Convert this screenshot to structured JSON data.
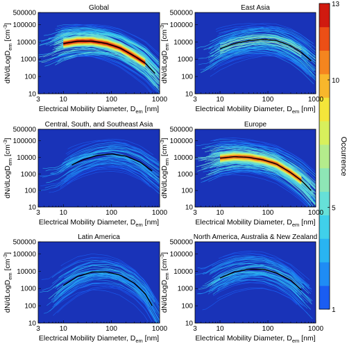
{
  "figure": {
    "colorbar": {
      "label": "Occurrence",
      "ticks": [
        1,
        5,
        10,
        13
      ],
      "range": [
        1,
        13
      ],
      "colors": [
        "#1a5df2",
        "#1f8cf5",
        "#29b4f2",
        "#40d0ea",
        "#66e0d8",
        "#8ee6b6",
        "#b4ec8c",
        "#d8f05c",
        "#f4e63a",
        "#f8b72c",
        "#f5851f",
        "#ec4f16",
        "#d01a0f"
      ]
    },
    "background_color": "#1933b8",
    "mean_line_color": "#000000"
  },
  "chart_data": [
    {
      "type": "heatmap",
      "title": "Global",
      "xlabel": "Electrical Mobility Diameter, D",
      "xlabel_sub": "em",
      "xlabel_unit": " [nm]",
      "ylabel": "dN/dLogD",
      "ylabel_sub": "em",
      "ylabel_unit": " [cm",
      "ylabel_sup": "-3",
      "ylabel_close": "]",
      "xscale": "log",
      "yscale": "log",
      "xlim": [
        3,
        1000
      ],
      "ylim": [
        10,
        500000
      ],
      "xticks": [
        3,
        10,
        100,
        1000
      ],
      "yticks": [
        10,
        100,
        1000,
        10000,
        100000,
        500000
      ],
      "mean_curve": {
        "x": [
          10,
          20,
          40,
          80,
          150,
          300,
          500,
          800
        ],
        "y": [
          8000,
          11000,
          11000,
          8000,
          4500,
          1500,
          600,
          150
        ]
      },
      "max_occurrence": 13
    },
    {
      "type": "heatmap",
      "title": "East Asia",
      "xlabel": "Electrical Mobility Diameter, D",
      "xlabel_sub": "em",
      "xlabel_unit": " [nm]",
      "ylabel": "dN/dLogD",
      "ylabel_sub": "em",
      "ylabel_unit": " [cm",
      "ylabel_sup": "-3",
      "ylabel_close": "]",
      "xscale": "log",
      "yscale": "log",
      "xlim": [
        3,
        1000
      ],
      "ylim": [
        10,
        500000
      ],
      "xticks": [
        3,
        10,
        100,
        1000
      ],
      "yticks": [
        10,
        100,
        1000,
        10000,
        100000,
        500000
      ],
      "mean_curve": {
        "x": [
          10,
          20,
          40,
          80,
          150,
          300,
          500,
          800
        ],
        "y": [
          4000,
          8000,
          12000,
          14000,
          12000,
          6000,
          2500,
          800
        ]
      },
      "max_occurrence": 6
    },
    {
      "type": "heatmap",
      "title": "Central, South, and Southeast Asia",
      "xlabel": "Electrical Mobility Diameter, D",
      "xlabel_sub": "em",
      "xlabel_unit": " [nm]",
      "ylabel": "dN/dLogD",
      "ylabel_sub": "em",
      "ylabel_unit": " [cm",
      "ylabel_sup": "-3",
      "ylabel_close": "]",
      "xscale": "log",
      "yscale": "log",
      "xlim": [
        3,
        1000
      ],
      "ylim": [
        10,
        500000
      ],
      "xticks": [
        3,
        10,
        100,
        1000
      ],
      "yticks": [
        10,
        100,
        1000,
        10000,
        100000,
        500000
      ],
      "mean_curve": {
        "x": [
          15,
          25,
          50,
          100,
          200,
          400,
          700
        ],
        "y": [
          3500,
          7000,
          13000,
          16000,
          12000,
          5000,
          1500
        ]
      },
      "max_occurrence": 4
    },
    {
      "type": "heatmap",
      "title": "Europe",
      "xlabel": "Electrical Mobility Diameter, D",
      "xlabel_sub": "em",
      "xlabel_unit": " [nm]",
      "ylabel": "dN/dLogD",
      "ylabel_sub": "em",
      "ylabel_unit": " [cm",
      "ylabel_sup": "-3",
      "ylabel_close": "]",
      "xscale": "log",
      "yscale": "log",
      "xlim": [
        3,
        1000
      ],
      "ylim": [
        10,
        500000
      ],
      "xticks": [
        3,
        10,
        100,
        1000
      ],
      "yticks": [
        10,
        100,
        1000,
        10000,
        100000,
        500000
      ],
      "mean_curve": {
        "x": [
          10,
          20,
          40,
          80,
          150,
          300,
          500,
          800
        ],
        "y": [
          9000,
          11000,
          10000,
          7000,
          4000,
          1200,
          400,
          100
        ]
      },
      "max_occurrence": 12
    },
    {
      "type": "heatmap",
      "title": "Latin America",
      "xlabel": "Electrical Mobility Diameter, D",
      "xlabel_sub": "em",
      "xlabel_unit": " [nm]",
      "ylabel": "dN/dLogD",
      "ylabel_sub": "em",
      "ylabel_unit": " [cm",
      "ylabel_sup": "-3",
      "ylabel_close": "]",
      "xscale": "log",
      "yscale": "log",
      "xlim": [
        3,
        1000
      ],
      "ylim": [
        10,
        500000
      ],
      "xticks": [
        3,
        10,
        100,
        1000
      ],
      "yticks": [
        10,
        100,
        1000,
        10000,
        100000,
        500000
      ],
      "mean_curve": {
        "x": [
          10,
          20,
          40,
          80,
          150,
          300,
          500,
          700
        ],
        "y": [
          1500,
          5000,
          9000,
          9000,
          6000,
          2000,
          500,
          100
        ]
      },
      "max_occurrence": 4
    },
    {
      "type": "heatmap",
      "title": "North America, Australia & New Zealand",
      "xlabel": "Electrical Mobility Diameter, D",
      "xlabel_sub": "em",
      "xlabel_unit": " [nm]",
      "ylabel": "dN/dLogD",
      "ylabel_sub": "em",
      "ylabel_unit": " [cm",
      "ylabel_sup": "-3",
      "ylabel_close": "]",
      "xscale": "log",
      "yscale": "log",
      "xlim": [
        3,
        1000
      ],
      "ylim": [
        10,
        500000
      ],
      "xticks": [
        3,
        10,
        100,
        1000
      ],
      "yticks": [
        10,
        100,
        1000,
        10000,
        100000,
        500000
      ],
      "mean_curve": {
        "x": [
          10,
          20,
          40,
          80,
          150,
          300,
          500
        ],
        "y": [
          4000,
          9000,
          13000,
          13000,
          8000,
          3000,
          800
        ]
      },
      "max_occurrence": 5
    }
  ]
}
